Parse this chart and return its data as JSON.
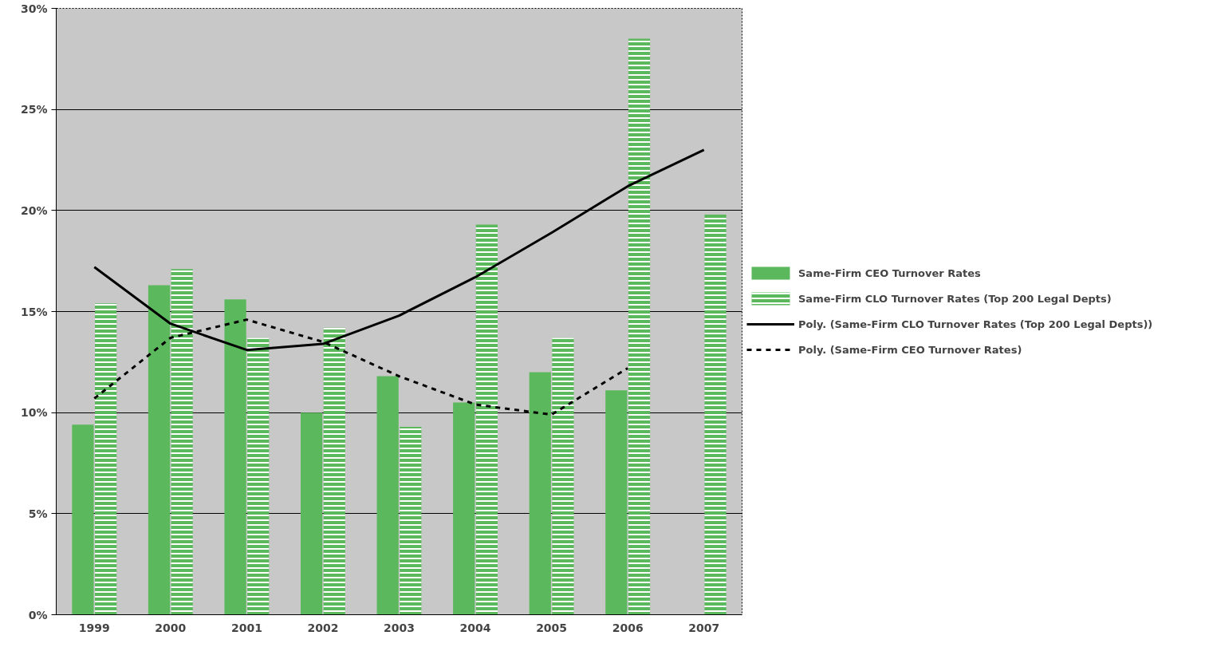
{
  "chart_data": {
    "type": "bar",
    "categories": [
      "1999",
      "2000",
      "2001",
      "2002",
      "2003",
      "2004",
      "2005",
      "2006",
      "2007"
    ],
    "series": [
      {
        "name": "Same-Firm CEO Turnover Rates",
        "color": "#5cb85c",
        "values": [
          9.4,
          16.3,
          15.6,
          10.0,
          11.8,
          10.5,
          12.0,
          11.1,
          null
        ]
      },
      {
        "name": "Same-Firm CLO Turnover Rates (Top 200 Legal Depts)",
        "color": "#5cb85c",
        "values": [
          15.4,
          17.1,
          13.7,
          14.2,
          9.3,
          19.3,
          13.7,
          28.5,
          19.8
        ]
      },
      {
        "name": "Poly. (Same-Firm CLO Turnover Rates (Top 200 Legal Depts))",
        "type": "line",
        "color": "#000000",
        "line_style": "solid",
        "values": [
          17.2,
          14.4,
          13.1,
          13.4,
          14.8,
          16.7,
          18.9,
          21.2,
          23.0
        ]
      },
      {
        "name": "Poly. (Same-Firm CEO Turnover Rates)",
        "type": "line",
        "color": "#000000",
        "line_style": "dashed",
        "values": [
          10.7,
          13.7,
          14.6,
          13.5,
          11.8,
          10.4,
          9.9,
          12.2,
          null
        ]
      }
    ],
    "ylim": [
      0,
      30
    ],
    "yticks": [
      {
        "value": 0,
        "label": "0%"
      },
      {
        "value": 5,
        "label": "5%"
      },
      {
        "value": 10,
        "label": "10%"
      },
      {
        "value": 15,
        "label": "15%"
      },
      {
        "value": 20,
        "label": "20%"
      },
      {
        "value": 25,
        "label": "25%"
      },
      {
        "value": 30,
        "label": "30%"
      }
    ],
    "grid": "y",
    "legend": "right"
  }
}
